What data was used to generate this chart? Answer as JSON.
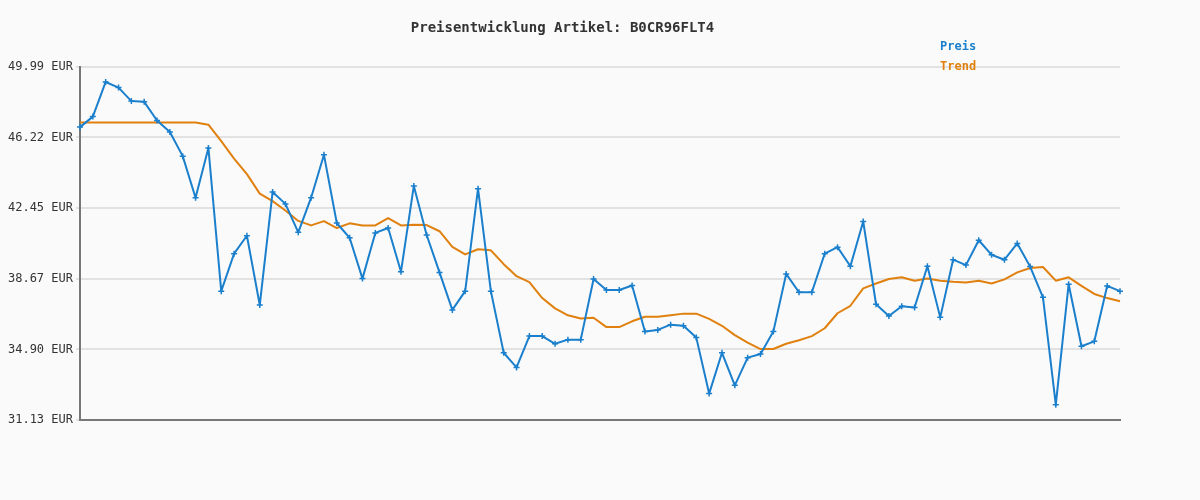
{
  "chart_data": {
    "type": "line",
    "title": "Preisentwicklung Artikel: B0CR96FLT4",
    "categories": [
      null,
      null,
      null,
      null,
      null,
      null,
      null,
      null,
      null,
      null,
      null,
      null,
      null,
      null,
      null,
      null,
      null,
      null,
      null,
      null,
      null,
      null,
      null,
      null,
      null,
      null,
      null,
      null,
      null,
      null,
      null,
      null,
      null,
      null,
      null,
      null,
      null,
      null,
      null,
      null,
      null,
      null,
      null,
      null,
      null,
      null,
      null,
      null,
      null,
      null,
      null,
      null,
      null,
      null,
      null,
      null,
      null,
      null,
      null,
      null,
      null,
      null,
      null,
      null,
      null,
      null,
      null,
      null,
      null,
      null,
      null,
      null,
      null,
      null,
      null,
      null,
      null,
      null,
      null,
      null,
      null,
      null
    ],
    "series": [
      {
        "name": "Preis",
        "color": "#1a7fcc",
        "marker": "cross",
        "values": [
          46.77,
          47.33,
          49.18,
          48.88,
          48.16,
          48.12,
          47.12,
          46.51,
          45.22,
          43.0,
          45.66,
          38.01,
          40.01,
          40.97,
          37.27,
          43.3,
          42.67,
          41.15,
          43.0,
          45.29,
          41.65,
          40.86,
          38.68,
          41.12,
          41.38,
          39.05,
          43.63,
          41.01,
          39.01,
          37.01,
          38.01,
          43.48,
          38.01,
          34.72,
          33.94,
          35.61,
          35.61,
          35.2,
          35.42,
          35.42,
          38.66,
          38.07,
          38.07,
          38.31,
          35.85,
          35.94,
          36.22,
          36.16,
          35.53,
          32.54,
          34.72,
          32.98,
          34.46,
          34.65,
          35.85,
          38.93,
          37.95,
          37.95,
          40.01,
          40.36,
          39.34,
          41.73,
          37.31,
          36.68,
          37.2,
          37.14,
          39.34,
          36.61,
          39.69,
          39.4,
          40.73,
          39.95,
          39.69,
          40.56,
          39.32,
          37.68,
          31.95,
          38.38,
          35.07,
          35.33,
          38.29,
          38.01
        ]
      },
      {
        "name": "Trend",
        "color": "#e0800f",
        "marker": "none",
        "values": [
          47.01,
          47.01,
          47.01,
          47.01,
          47.01,
          47.01,
          47.01,
          47.01,
          47.01,
          47.01,
          46.9,
          46.02,
          45.09,
          44.26,
          43.22,
          42.82,
          42.32,
          41.76,
          41.52,
          41.75,
          41.38,
          41.63,
          41.52,
          41.52,
          41.91,
          41.52,
          41.56,
          41.54,
          41.21,
          40.38,
          39.97,
          40.25,
          40.19,
          39.45,
          38.81,
          38.49,
          37.64,
          37.09,
          36.72,
          36.55,
          36.59,
          36.09,
          36.09,
          36.4,
          36.64,
          36.64,
          36.72,
          36.81,
          36.81,
          36.53,
          36.16,
          35.66,
          35.26,
          34.92,
          34.92,
          35.2,
          35.39,
          35.61,
          36.03,
          36.83,
          37.23,
          38.16,
          38.42,
          38.66,
          38.75,
          38.57,
          38.69,
          38.57,
          38.51,
          38.47,
          38.57,
          38.42,
          38.64,
          39.01,
          39.25,
          39.3,
          38.57,
          38.75,
          38.29,
          37.86,
          37.64,
          37.47
        ]
      }
    ],
    "ylim": [
      31.13,
      49.99
    ],
    "yticks": [
      {
        "value": 31.13,
        "label": "31.13 EUR"
      },
      {
        "value": 34.9,
        "label": "34.90 EUR"
      },
      {
        "value": 38.67,
        "label": "38.67 EUR"
      },
      {
        "value": 42.45,
        "label": "42.45 EUR"
      },
      {
        "value": 46.22,
        "label": "46.22 EUR"
      },
      {
        "value": 49.99,
        "label": "49.99 EUR"
      }
    ],
    "grid": "y",
    "legend": "top right",
    "tick_labels": "y"
  }
}
